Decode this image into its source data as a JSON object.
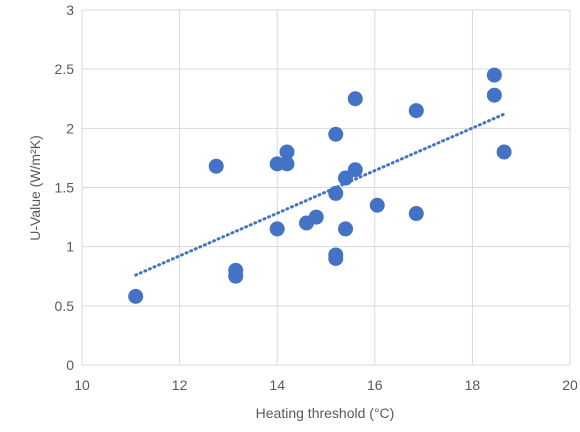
{
  "chart_data": {
    "type": "scatter",
    "xlabel": "Heating threshold (°C)",
    "ylabel": "U-Value (W/m²K)",
    "xlim": [
      10,
      20
    ],
    "ylim": [
      0,
      3
    ],
    "x_ticks": [
      "10",
      "12",
      "14",
      "16",
      "18",
      "20"
    ],
    "y_ticks": [
      "0",
      "0.5",
      "1",
      "1.5",
      "2",
      "2.5",
      "3"
    ],
    "grid": true,
    "legend": "none",
    "points": [
      {
        "x": 11.1,
        "y": 0.58
      },
      {
        "x": 12.75,
        "y": 1.68
      },
      {
        "x": 13.15,
        "y": 0.8
      },
      {
        "x": 13.15,
        "y": 0.75
      },
      {
        "x": 14.0,
        "y": 1.7
      },
      {
        "x": 14.0,
        "y": 1.15
      },
      {
        "x": 14.2,
        "y": 1.8
      },
      {
        "x": 14.2,
        "y": 1.7
      },
      {
        "x": 14.6,
        "y": 1.2
      },
      {
        "x": 14.8,
        "y": 1.25
      },
      {
        "x": 15.2,
        "y": 1.95
      },
      {
        "x": 15.2,
        "y": 1.45
      },
      {
        "x": 15.2,
        "y": 0.93
      },
      {
        "x": 15.2,
        "y": 0.9
      },
      {
        "x": 15.4,
        "y": 1.58
      },
      {
        "x": 15.4,
        "y": 1.15
      },
      {
        "x": 15.6,
        "y": 2.25
      },
      {
        "x": 15.6,
        "y": 1.65
      },
      {
        "x": 16.05,
        "y": 1.35
      },
      {
        "x": 16.85,
        "y": 2.15
      },
      {
        "x": 16.85,
        "y": 1.28
      },
      {
        "x": 18.45,
        "y": 2.45
      },
      {
        "x": 18.45,
        "y": 2.28
      },
      {
        "x": 18.65,
        "y": 1.8
      }
    ],
    "trendline": {
      "type": "linear",
      "style": "dotted",
      "x": [
        11.1,
        18.65
      ],
      "y": [
        0.76,
        2.12
      ]
    },
    "colors": {
      "marker": "#4472c4",
      "trendline": "#4472c4",
      "grid": "#d9d9d9",
      "text": "#595959"
    }
  }
}
